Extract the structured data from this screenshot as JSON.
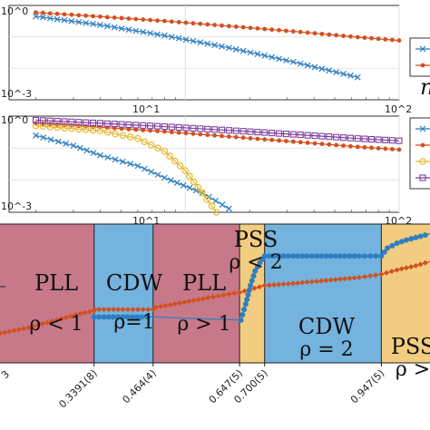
{
  "chart_data": [
    {
      "type": "line",
      "xscale": "log",
      "yscale": "log",
      "x_ticks": [
        "10^1",
        "10^2"
      ],
      "y_tick_labels": [
        "10^0",
        "10^-3"
      ],
      "legend_placement": "right (partially cut off)",
      "partial_legend_glyph": "n",
      "grid": true,
      "series": [
        {
          "marker": "x",
          "color": "#2e7fc1",
          "x": [
            2,
            4,
            8,
            16,
            32,
            64
          ],
          "y": [
            0.45,
            0.24,
            0.11,
            0.045,
            0.016,
            0.0052
          ]
        },
        {
          "marker": "dot",
          "color": "#d2501f",
          "x": [
            2,
            4,
            8,
            16,
            32,
            64,
            100
          ],
          "y": [
            0.6,
            0.44,
            0.32,
            0.22,
            0.15,
            0.098,
            0.077
          ]
        }
      ]
    },
    {
      "type": "line",
      "xscale": "log",
      "yscale": "log",
      "x_ticks": [
        "10^1",
        "10^2"
      ],
      "y_tick_labels": [
        "10^0",
        "10^-3"
      ],
      "legend_placement": "right (partially cut off)",
      "grid": true,
      "series": [
        {
          "marker": "x",
          "color": "#2e7fc1",
          "x": [
            2,
            3,
            4,
            6,
            8,
            12,
            16
          ],
          "y": [
            0.25,
            0.12,
            0.06,
            0.028,
            0.012,
            0.004,
            0.0013
          ]
        },
        {
          "marker": "dot",
          "color": "#d2501f",
          "x": [
            2,
            4,
            8,
            16,
            32,
            64,
            100
          ],
          "y": [
            0.6,
            0.45,
            0.33,
            0.23,
            0.16,
            0.11,
            0.09
          ]
        },
        {
          "marker": "circle",
          "color": "#e8b830",
          "x": [
            2,
            4,
            6,
            8,
            10,
            12,
            14
          ],
          "y": [
            0.5,
            0.35,
            0.2,
            0.08,
            0.02,
            0.004,
            0.001
          ]
        },
        {
          "marker": "square",
          "color": "#7e3fa0",
          "x": [
            2,
            4,
            8,
            16,
            32,
            64,
            100
          ],
          "y": [
            0.75,
            0.6,
            0.47,
            0.36,
            0.27,
            0.2,
            0.17
          ]
        }
      ]
    },
    {
      "type": "scatter",
      "description": "phase diagram strip",
      "x_ticks": [
        "0.3391(8)",
        "0.464(4)",
        "0.647(5)",
        "0.700(5)",
        "0.947(5)"
      ],
      "x_tick_values": [
        0.3391,
        0.464,
        0.647,
        0.7,
        0.947
      ],
      "x_partial_label": "3",
      "xlim": [
        0.14,
        1.05
      ],
      "regions": [
        {
          "from": 0.14,
          "to": 0.3391,
          "phase": "PLL",
          "condition": "ρ < 1",
          "color": "#c7798a"
        },
        {
          "from": 0.3391,
          "to": 0.464,
          "phase": "CDW",
          "condition": "ρ=1",
          "color": "#74b3de"
        },
        {
          "from": 0.464,
          "to": 0.647,
          "phase": "PLL",
          "condition": "ρ > 1",
          "color": "#c7798a"
        },
        {
          "from": 0.647,
          "to": 0.7,
          "phase": "PSS",
          "condition": "ρ < 2",
          "color": "#f2cc80"
        },
        {
          "from": 0.7,
          "to": 0.947,
          "phase": "CDW",
          "condition": "ρ = 2",
          "color": "#74b3de"
        },
        {
          "from": 0.947,
          "to": 1.05,
          "phase": "PSS",
          "condition": "ρ >",
          "color": "#f2cc80"
        }
      ],
      "ylim": [
        0,
        2.6
      ],
      "series": [
        {
          "name": "",
          "color": "#d2501f",
          "x": [
            0.14,
            0.2,
            0.25,
            0.3,
            0.3391,
            0.34,
            0.4,
            0.464,
            0.47,
            0.52,
            0.58,
            0.647,
            0.7,
            0.75,
            0.8,
            0.85,
            0.9,
            0.947,
            0.98,
            1.02,
            1.05
          ],
          "y": [
            0.55,
            0.66,
            0.78,
            0.9,
            0.98,
            1.0,
            1.0,
            1.0,
            1.04,
            1.12,
            1.22,
            1.32,
            1.45,
            1.48,
            1.52,
            1.56,
            1.6,
            1.66,
            1.74,
            1.82,
            1.9
          ]
        },
        {
          "name": "",
          "color": "#2e7fc1",
          "x": [
            0.3391,
            0.36,
            0.4,
            0.44,
            0.464,
            0.65,
            0.66,
            0.67,
            0.68,
            0.69,
            0.7,
            0.75,
            0.8,
            0.85,
            0.9,
            0.947,
            0.96,
            0.98,
            1.0,
            1.03,
            1.05
          ],
          "y": [
            0.86,
            0.86,
            0.86,
            0.86,
            0.86,
            0.8,
            1.1,
            1.45,
            1.72,
            1.88,
            2.0,
            2.0,
            2.0,
            2.0,
            2.0,
            2.0,
            2.15,
            2.24,
            2.3,
            2.37,
            2.42
          ]
        }
      ]
    }
  ]
}
